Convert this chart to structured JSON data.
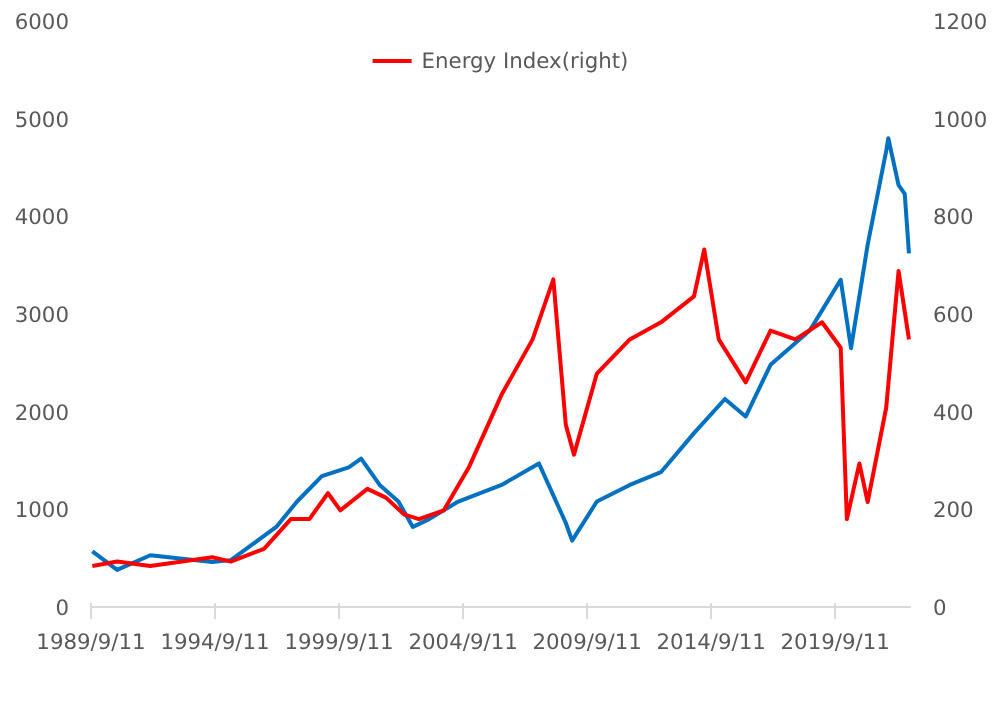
{
  "chart_data": {
    "type": "line",
    "legend": "top",
    "xlim": [
      "1989-09-11",
      "2022-10"
    ],
    "ylim": [
      0,
      6000
    ],
    "yticks": [
      0,
      1000,
      2000,
      3000,
      4000,
      5000,
      6000
    ],
    "y2lim": [
      0,
      1200
    ],
    "y2ticks": [
      0,
      200,
      400,
      600,
      800,
      1000,
      1200
    ],
    "xticks": [
      {
        "value": "1989-09-11",
        "label": "1989/9/11"
      },
      {
        "value": "1994-09-11",
        "label": "1994/9/11"
      },
      {
        "value": "1999-09-11",
        "label": "1999/9/11"
      },
      {
        "value": "2004-09-11",
        "label": "2004/9/11"
      },
      {
        "value": "2009-09-11",
        "label": "2009/9/11"
      },
      {
        "value": "2014-09-11",
        "label": "2014/9/11"
      },
      {
        "value": "2019-09-11",
        "label": "2019/9/11"
      }
    ],
    "series": [
      {
        "color": "#0070c0",
        "x": [
          "1989-10",
          "1990-10",
          "1992-02",
          "1994-08",
          "1995-05",
          "1997-03",
          "1998-01",
          "1999-01",
          "2000-02",
          "2000-08",
          "2001-05",
          "2002-02",
          "2002-09",
          "2003-05",
          "2004-07",
          "2006-04",
          "2007-10",
          "2008-11",
          "2009-02",
          "2010-02",
          "2011-06",
          "2012-09",
          "2014-01",
          "2015-04",
          "2016-02",
          "2017-02",
          "2018-09",
          "2019-12",
          "2020-05",
          "2021-01",
          "2021-10",
          "2021-11",
          "2022-04",
          "2022-07",
          "2022-09"
        ],
        "values": [
          570,
          380,
          530,
          460,
          480,
          820,
          1080,
          1340,
          1430,
          1520,
          1250,
          1080,
          820,
          900,
          1080,
          1250,
          1470,
          860,
          680,
          1080,
          1250,
          1380,
          1780,
          2130,
          1950,
          2480,
          2830,
          3350,
          2650,
          3710,
          4670,
          4800,
          4320,
          4230,
          3620
        ]
      },
      {
        "name": "Energy Index(right)",
        "color": "#ff0000",
        "axis": "y2",
        "x": [
          "1989-10",
          "1990-10",
          "1992-02",
          "1994-08",
          "1995-05",
          "1996-09",
          "1997-10",
          "1998-07",
          "1999-04",
          "1999-10",
          "2000-11",
          "2001-08",
          "2002-05",
          "2002-12",
          "2003-12",
          "2004-12",
          "2006-04",
          "2007-07",
          "2008-05",
          "2008-11",
          "2009-03",
          "2010-02",
          "2011-06",
          "2012-09",
          "2014-01",
          "2014-06",
          "2015-01",
          "2016-02",
          "2017-02",
          "2018-02",
          "2019-03",
          "2019-12",
          "2020-03",
          "2020-09",
          "2021-01",
          "2021-10",
          "2022-04",
          "2022-09"
        ],
        "values": [
          84,
          93,
          84,
          102,
          93,
          119,
          180,
          180,
          233,
          198,
          242,
          224,
          189,
          180,
          198,
          285,
          435,
          548,
          671,
          373,
          312,
          478,
          548,
          583,
          636,
          732,
          548,
          460,
          566,
          548,
          583,
          531,
          180,
          294,
          215,
          408,
          688,
          548
        ]
      }
    ]
  }
}
